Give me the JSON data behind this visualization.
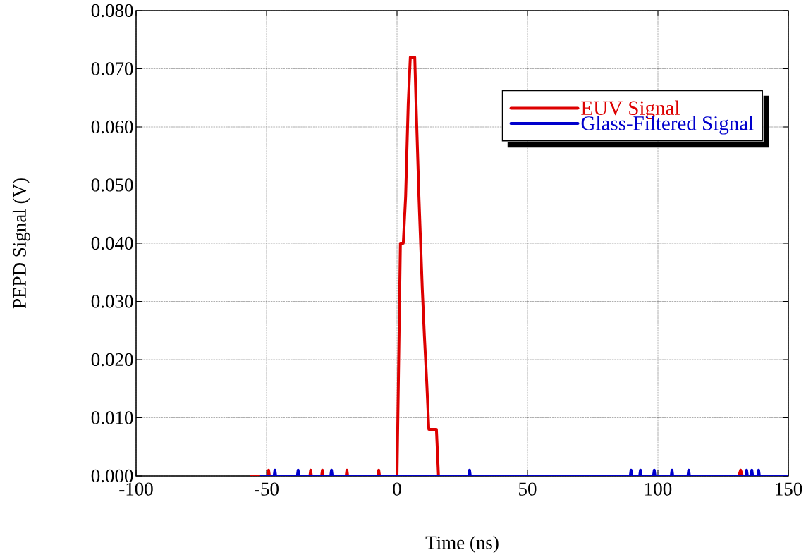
{
  "chart_data": {
    "type": "line",
    "xlabel": "Time (ns)",
    "ylabel": "PEPD Signal (V)",
    "xlim": [
      -100,
      150
    ],
    "xticks": [
      -100,
      -50,
      0,
      50,
      100,
      150
    ],
    "ylim": [
      0,
      0.08
    ],
    "yticks": [
      {
        "value": 0,
        "label": "0.000"
      },
      {
        "value": 0.01,
        "label": "0.010"
      },
      {
        "value": 0.02,
        "label": "0.020"
      },
      {
        "value": 0.03,
        "label": "0.030"
      },
      {
        "value": 0.04,
        "label": "0.040"
      },
      {
        "value": 0.05,
        "label": "0.050"
      },
      {
        "value": 0.06,
        "label": "0.060"
      },
      {
        "value": 0.07,
        "label": "0.070"
      },
      {
        "value": 0.08,
        "label": "0.080"
      }
    ],
    "grid": true,
    "legend": "top right",
    "line_style": "solid",
    "series": [
      {
        "name": "EUV Signal",
        "color": "#dd0000",
        "x": [
          -55.7,
          -49.5,
          -49.2,
          -48.9,
          -33.4,
          -33.1,
          -32.8,
          -28.9,
          -28.6,
          -28.3,
          -19.5,
          -19.2,
          -18.9,
          -7.3,
          -7.0,
          -6.7,
          0,
          1.3,
          2.4,
          3.3,
          4.3,
          5.1,
          6.8,
          7.3,
          8.4,
          9.7,
          10.5,
          11.4,
          12.2,
          15.1,
          15.9,
          123.8,
          124.5,
          131,
          131.7,
          132.4,
          150
        ],
        "values": [
          0,
          0,
          0.001,
          0,
          0,
          0.001,
          0,
          0,
          0.001,
          0,
          0,
          0.001,
          0,
          0,
          0.001,
          0,
          0,
          0.04,
          0.04,
          0.048,
          0.064,
          0.072,
          0.072,
          0.064,
          0.048,
          0.032,
          0.024,
          0.016,
          0.008,
          0.008,
          0,
          0,
          null,
          0,
          0.001,
          0,
          0
        ]
      },
      {
        "name": "Glass-Filtered Signal",
        "color": "#0000cc",
        "x": [
          -52,
          -47.1,
          -46.8,
          -46.5,
          -38.2,
          -37.9,
          -37.6,
          -25.4,
          -25.1,
          -24.8,
          27.5,
          27.8,
          28.1,
          89.4,
          89.7,
          90,
          93,
          93.3,
          93.6,
          98.3,
          98.6,
          98.9,
          105.1,
          105.4,
          105.7,
          111.5,
          111.8,
          112.1,
          133.7,
          134,
          134.3,
          135.7,
          136,
          136.3,
          138.3,
          138.6,
          138.9,
          150
        ],
        "values": [
          0,
          0,
          0.001,
          0,
          0,
          0.001,
          0,
          0,
          0.001,
          0,
          0,
          0.001,
          0,
          0,
          0.001,
          0,
          0,
          0.001,
          0,
          0,
          0.001,
          0,
          0,
          0.001,
          0,
          0,
          0.001,
          0,
          0,
          0.001,
          0,
          0,
          0.001,
          0,
          0,
          0.001,
          0,
          0
        ]
      }
    ]
  }
}
